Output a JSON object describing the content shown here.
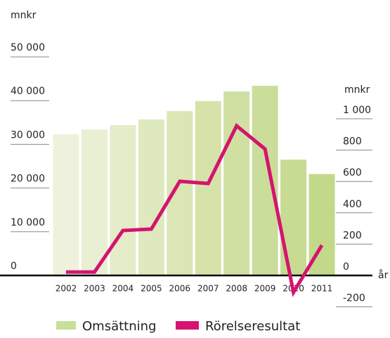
{
  "chart_data": {
    "type": "bar-line",
    "y_label": "mnkr",
    "y2_label": "mnkr",
    "x_label": "år",
    "categories": [
      "2002",
      "2003",
      "2004",
      "2005",
      "2006",
      "2007",
      "2008",
      "2009",
      "2010",
      "2011"
    ],
    "series": [
      {
        "name": "Omsättning",
        "type": "bar",
        "color": "#c8df98",
        "colors": [
          "#eef2dc",
          "#e9efd2",
          "#e4ecc8",
          "#dfe9be",
          "#dae6b4",
          "#d5e3aa",
          "#d0e0a2",
          "#cbdd9a",
          "#c7db92",
          "#c3d98a"
        ],
        "values": [
          32300,
          33400,
          34400,
          35700,
          37600,
          39900,
          42100,
          43400,
          26500,
          23200
        ]
      },
      {
        "name": "Rörelseresultat",
        "type": "line",
        "axis": "y2",
        "color": "#d4146f",
        "values": [
          22,
          22,
          287,
          296,
          601,
          587,
          955,
          807,
          -108,
          193
        ]
      }
    ],
    "ylim": [
      0,
      50000
    ],
    "yticks": [
      {
        "value": 0,
        "label": "0"
      },
      {
        "value": 10000,
        "label": "10 000"
      },
      {
        "value": 20000,
        "label": "20 000"
      },
      {
        "value": 30000,
        "label": "30 000"
      },
      {
        "value": 40000,
        "label": "40 000"
      },
      {
        "value": 50000,
        "label": "50 000"
      }
    ],
    "y2lim": [
      -200,
      1000
    ],
    "y2ticks": [
      -200,
      0,
      200,
      400,
      600,
      800,
      {
        "value": 1000,
        "label": "1 000"
      }
    ]
  }
}
